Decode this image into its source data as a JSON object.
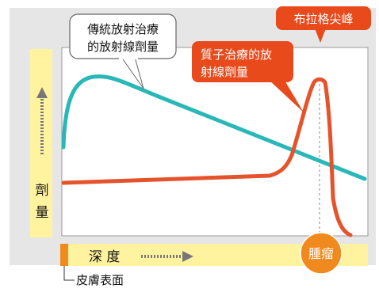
{
  "diagram": {
    "y_axis_label": [
      "劑",
      "量"
    ],
    "x_axis_label": "深 度",
    "skin_surface_label": "皮膚表面",
    "tumor_label": "腫瘤",
    "callout_conventional": [
      "傳統放射治療",
      "的放射線劑量"
    ],
    "callout_proton": [
      "質子治療的放",
      "射線劑量"
    ],
    "callout_bragg": "布拉格尖峰"
  },
  "colors": {
    "background_panel": "#e6e6e6",
    "plot_area": "#ffffff",
    "axis_band": "#fff3a0",
    "conventional_curve": "#2ab7b7",
    "proton_curve": "#e5532c",
    "callout_proton_fill": "#e84a1c",
    "tumor_circle": "#f08a1e",
    "skin_marker": "#f08a1e",
    "arrow": "#777777"
  },
  "icons": {
    "y_axis_arrow": "dotted-up-arrow-icon",
    "x_axis_arrow": "dotted-right-arrow-icon"
  }
}
